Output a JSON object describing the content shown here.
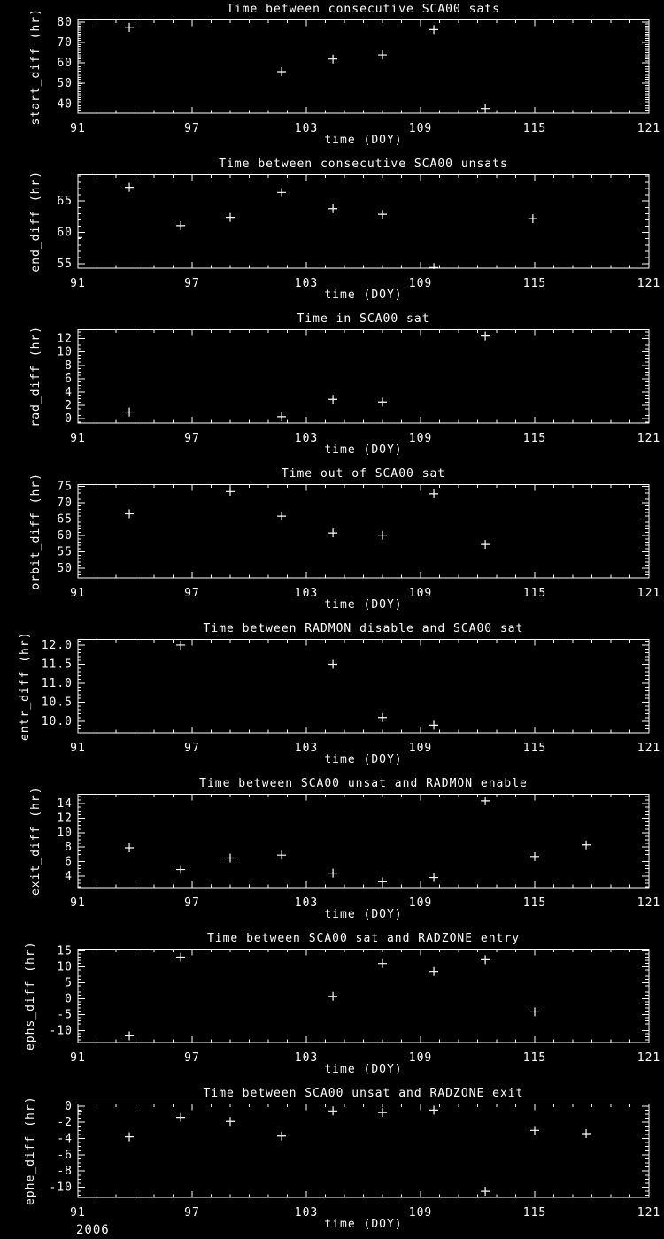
{
  "page": {
    "background": "#000000",
    "foreground": "#ffffff",
    "footer_year": "2006"
  },
  "axis_common": {
    "xlabel": "time (DOY)",
    "xlim": [
      91,
      121
    ],
    "xtick_values": [
      91,
      97,
      103,
      109,
      115,
      121
    ],
    "xtick_labels": [
      "91",
      "97",
      "103",
      "109",
      "115",
      "121"
    ],
    "x_minor_step": 1,
    "grid": false,
    "marker": "plus"
  },
  "chart_data": [
    {
      "type": "scatter",
      "title": "Time between consecutive SCA00 sats",
      "ylabel": "start_diff (hr)",
      "ylim": [
        35.4,
        81.0
      ],
      "ytick_values": [
        40,
        50,
        60,
        70,
        80
      ],
      "ytick_labels": [
        "40",
        "50",
        "60",
        "70",
        "80"
      ],
      "y_minor_step": 1,
      "ylabel_x": 40,
      "points": [
        [
          91.0,
          50.0
        ],
        [
          93.7,
          77.4
        ],
        [
          101.7,
          55.7
        ],
        [
          104.4,
          61.9
        ],
        [
          107.0,
          63.9
        ],
        [
          109.7,
          76.3
        ],
        [
          112.4,
          37.7
        ]
      ]
    },
    {
      "type": "scatter",
      "title": "Time between consecutive SCA00 unsats",
      "ylabel": "end_diff (hr)",
      "ylim": [
        54.3,
        69.2
      ],
      "ytick_values": [
        55,
        60,
        65
      ],
      "ytick_labels": [
        "55",
        "60",
        "65"
      ],
      "y_minor_step": 1,
      "ylabel_x": 40,
      "points": [
        [
          91.0,
          59.2
        ],
        [
          93.7,
          67.2
        ],
        [
          96.4,
          61.1
        ],
        [
          99.0,
          62.4
        ],
        [
          101.7,
          66.4
        ],
        [
          104.4,
          63.8
        ],
        [
          107.0,
          62.9
        ],
        [
          109.7,
          54.4
        ],
        [
          114.9,
          62.2
        ]
      ]
    },
    {
      "type": "scatter",
      "title": "Time in SCA00 sat",
      "ylabel": "rad_diff (hr)",
      "ylim": [
        -0.65,
        13.35
      ],
      "ytick_values": [
        0,
        2,
        4,
        6,
        8,
        10,
        12
      ],
      "ytick_labels": [
        "0",
        "2",
        "4",
        "6",
        "8",
        "10",
        "12"
      ],
      "y_minor_step": 0.5,
      "ylabel_x": 40,
      "points": [
        [
          93.7,
          1.0
        ],
        [
          101.7,
          0.3
        ],
        [
          104.4,
          2.9
        ],
        [
          107.0,
          2.5
        ],
        [
          112.4,
          12.4
        ]
      ]
    },
    {
      "type": "scatter",
      "title": "Time out of SCA00 sat",
      "ylabel": "orbit_diff (hr)",
      "ylim": [
        47.1,
        75.5
      ],
      "ytick_values": [
        50,
        55,
        60,
        65,
        70,
        75
      ],
      "ytick_labels": [
        "50",
        "55",
        "60",
        "65",
        "70",
        "75"
      ],
      "y_minor_step": 1,
      "ylabel_x": 40,
      "points": [
        [
          93.7,
          66.6
        ],
        [
          99.0,
          73.4
        ],
        [
          101.7,
          65.9
        ],
        [
          104.4,
          60.8
        ],
        [
          107.0,
          60.1
        ],
        [
          109.7,
          72.7
        ],
        [
          112.4,
          57.3
        ]
      ]
    },
    {
      "type": "scatter",
      "title": "Time between RADMON disable and SCA00 sat",
      "ylabel": "entr_diff (hr)",
      "ylim": [
        9.7,
        12.15
      ],
      "ytick_values": [
        10.0,
        10.5,
        11.0,
        11.5,
        12.0
      ],
      "ytick_labels": [
        "10.0",
        "10.5",
        "11.0",
        "11.5",
        "12.0"
      ],
      "y_minor_step": 0.1,
      "ylabel_x": 28,
      "points": [
        [
          96.4,
          12.0
        ],
        [
          104.4,
          11.5
        ],
        [
          107.0,
          10.1
        ],
        [
          109.7,
          9.9
        ]
      ]
    },
    {
      "type": "scatter",
      "title": "Time between SCA00 unsat and RADMON enable",
      "ylabel": "exit_diff (hr)",
      "ylim": [
        2.4,
        15.3
      ],
      "ytick_values": [
        4,
        6,
        8,
        10,
        12,
        14
      ],
      "ytick_labels": [
        "4",
        "6",
        "8",
        "10",
        "12",
        "14"
      ],
      "y_minor_step": 0.5,
      "ylabel_x": 40,
      "points": [
        [
          93.7,
          7.9
        ],
        [
          96.4,
          4.9
        ],
        [
          99.0,
          6.5
        ],
        [
          101.7,
          6.9
        ],
        [
          104.4,
          4.4
        ],
        [
          107.0,
          3.2
        ],
        [
          109.7,
          3.8
        ],
        [
          112.4,
          14.4
        ],
        [
          115.0,
          6.7
        ],
        [
          117.7,
          8.3
        ]
      ]
    },
    {
      "type": "scatter",
      "title": "Time between SCA00 sat and RADZONE entry",
      "ylabel": "ephs_diff (hr)",
      "ylim": [
        -13.8,
        15.5
      ],
      "ytick_values": [
        -10,
        -5,
        0,
        5,
        10,
        15
      ],
      "ytick_labels": [
        "-10",
        "-5",
        "0",
        "5",
        "10",
        "15"
      ],
      "y_minor_step": 1,
      "ylabel_x": 34,
      "points": [
        [
          93.7,
          -11.7
        ],
        [
          96.4,
          13.0
        ],
        [
          104.4,
          0.7
        ],
        [
          107.0,
          11.0
        ],
        [
          109.7,
          8.5
        ],
        [
          112.4,
          12.2
        ],
        [
          115.0,
          -4.2
        ]
      ]
    },
    {
      "type": "scatter",
      "title": "Time between SCA00 unsat and RADZONE exit",
      "ylabel": "ephe_diff (hr)",
      "ylim": [
        -11.25,
        0.25
      ],
      "ytick_values": [
        0,
        -2,
        -4,
        -6,
        -8,
        -10
      ],
      "ytick_labels": [
        "0",
        "-2",
        "-4",
        "-6",
        "-8",
        "-10"
      ],
      "y_minor_step": 0.5,
      "ylabel_x": 34,
      "points": [
        [
          91.0,
          -0.6
        ],
        [
          93.7,
          -3.8
        ],
        [
          96.4,
          -1.4
        ],
        [
          99.0,
          -1.9
        ],
        [
          101.7,
          -3.7
        ],
        [
          104.4,
          -0.6
        ],
        [
          107.0,
          -0.8
        ],
        [
          109.7,
          -0.5
        ],
        [
          112.4,
          -10.5
        ],
        [
          115.0,
          -3.0
        ],
        [
          117.7,
          -3.4
        ]
      ]
    }
  ]
}
